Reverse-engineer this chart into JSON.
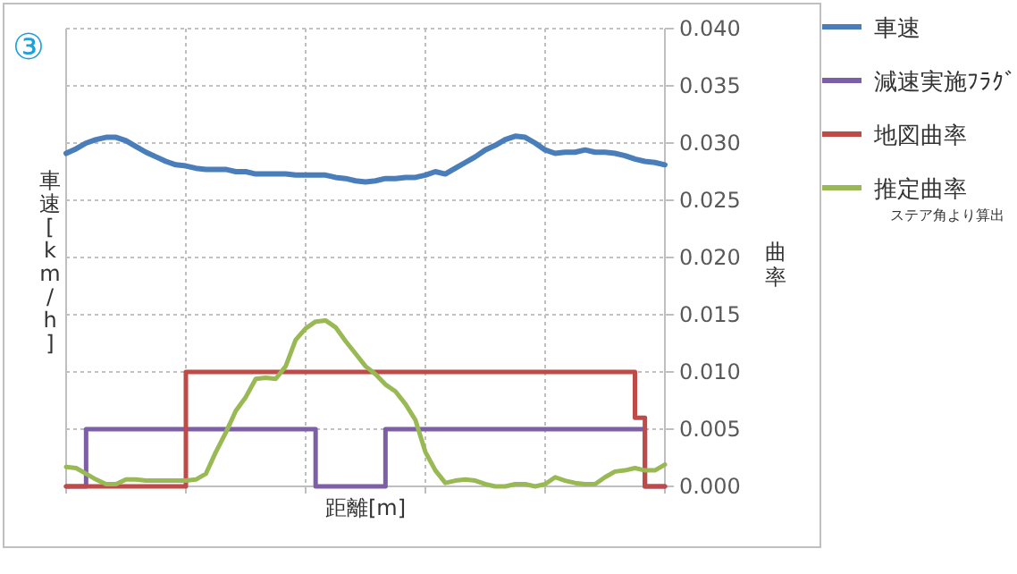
{
  "chart_data": {
    "type": "line",
    "xlabel": "距離[m]",
    "ylabel": "車速[km/h]",
    "y2label": "曲率",
    "annotations": [
      "③",
      "ステア角より算出"
    ],
    "categories": [
      null,
      null,
      null,
      null,
      null,
      null,
      null,
      null,
      null,
      null,
      null,
      null,
      null,
      null,
      null,
      null,
      null,
      null,
      null,
      null,
      null,
      null,
      null,
      null,
      null,
      null,
      null,
      null,
      null,
      null,
      null,
      null,
      null,
      null,
      null,
      null,
      null,
      null,
      null,
      null,
      null,
      null,
      null,
      null,
      null,
      null,
      null,
      null,
      null,
      null,
      null,
      null,
      null,
      null,
      null,
      null,
      null,
      null,
      null,
      null,
      null
    ],
    "ylim": [
      0,
      0.04
    ],
    "yticks": [
      {
        "value": 0,
        "label": "0.000"
      },
      {
        "value": 0.005,
        "label": "0.005"
      },
      {
        "value": 0.01,
        "label": "0.010"
      },
      {
        "value": 0.015,
        "label": "0.015"
      },
      {
        "value": 0.02,
        "label": "0.020"
      },
      {
        "value": 0.025,
        "label": "0.025"
      },
      {
        "value": 0.03,
        "label": "0.030"
      },
      {
        "value": 0.035,
        "label": "0.035"
      },
      {
        "value": 0.04,
        "label": "0.040"
      }
    ],
    "tick_labels": "y",
    "grid": true,
    "legend": "right",
    "marker": "none",
    "series": [
      {
        "name": "車速",
        "color": "#4a7ebb",
        "values": [
          0.0291,
          0.0295,
          0.03,
          0.0303,
          0.0305,
          0.0305,
          0.0302,
          0.0297,
          0.0292,
          0.0288,
          0.0284,
          0.0281,
          0.028,
          0.0278,
          0.0277,
          0.0277,
          0.0277,
          0.0275,
          0.0275,
          0.0273,
          0.0273,
          0.0273,
          0.0273,
          0.0272,
          0.0272,
          0.0272,
          0.0272,
          0.027,
          0.0269,
          0.0267,
          0.0266,
          0.0267,
          0.0269,
          0.0269,
          0.027,
          0.027,
          0.0272,
          0.0275,
          0.0273,
          0.0278,
          0.0283,
          0.0288,
          0.0294,
          0.0298,
          0.0303,
          0.0306,
          0.0305,
          0.03,
          0.0294,
          0.0291,
          0.0292,
          0.0292,
          0.0294,
          0.0292,
          0.0292,
          0.0291,
          0.0289,
          0.0286,
          0.0284,
          0.0283,
          0.0281
        ]
      },
      {
        "name": "減速実施ﾌﾗｸﾞ",
        "color": "#7d5fa8",
        "type": "step",
        "values": [
          0,
          0,
          0.005,
          0.005,
          0.005,
          0.005,
          0.005,
          0.005,
          0.005,
          0.005,
          0.005,
          0.005,
          0.005,
          0.005,
          0.005,
          0.005,
          0.005,
          0.005,
          0.005,
          0.005,
          0.005,
          0.005,
          0.005,
          0.005,
          0.005,
          0,
          0,
          0,
          0,
          0,
          0,
          0,
          0.005,
          0.005,
          0.005,
          0.005,
          0.005,
          0.005,
          0.005,
          0.005,
          0.005,
          0.005,
          0.005,
          0.005,
          0.005,
          0.005,
          0.005,
          0.005,
          0.005,
          0.005,
          0.005,
          0.005,
          0.005,
          0.005,
          0.005,
          0.005,
          0.005,
          0.005,
          0,
          0,
          0
        ]
      },
      {
        "name": "地図曲率",
        "color": "#be4b48",
        "type": "step",
        "values": [
          0,
          0,
          0,
          0,
          0,
          0,
          0,
          0,
          0,
          0,
          0,
          0,
          0.01,
          0.01,
          0.01,
          0.01,
          0.01,
          0.01,
          0.01,
          0.01,
          0.01,
          0.01,
          0.01,
          0.01,
          0.01,
          0.01,
          0.01,
          0.01,
          0.01,
          0.01,
          0.01,
          0.01,
          0.01,
          0.01,
          0.01,
          0.01,
          0.01,
          0.01,
          0.01,
          0.01,
          0.01,
          0.01,
          0.01,
          0.01,
          0.01,
          0.01,
          0.01,
          0.01,
          0.01,
          0.01,
          0.01,
          0.01,
          0.01,
          0.01,
          0.01,
          0.01,
          0.01,
          0.006,
          0,
          0,
          0
        ]
      },
      {
        "name": "推定曲率",
        "color": "#98b954",
        "values": [
          0.0017,
          0.0016,
          0.0011,
          0.0006,
          0.0002,
          0.0002,
          0.0006,
          0.0006,
          0.0005,
          0.0005,
          0.0005,
          0.0005,
          0.0005,
          0.0006,
          0.0011,
          0.003,
          0.0047,
          0.0066,
          0.0078,
          0.0094,
          0.0095,
          0.0094,
          0.0105,
          0.0128,
          0.0138,
          0.0144,
          0.0145,
          0.0139,
          0.0127,
          0.0116,
          0.0105,
          0.0098,
          0.0089,
          0.0083,
          0.0072,
          0.0058,
          0.003,
          0.0014,
          0.0003,
          0.0005,
          0.0006,
          0.0005,
          0.0002,
          0,
          0,
          0.0002,
          0.0002,
          0,
          0.0002,
          0.0008,
          0.0005,
          0.0003,
          0.0002,
          0.0002,
          0.0008,
          0.0013,
          0.0014,
          0.0016,
          0.0014,
          0.0014,
          0.0019
        ]
      }
    ]
  }
}
